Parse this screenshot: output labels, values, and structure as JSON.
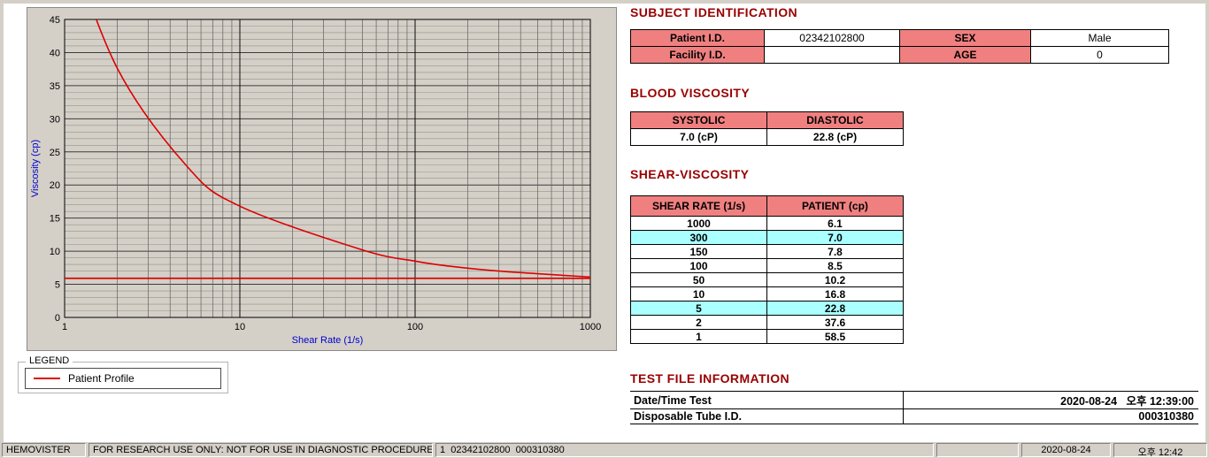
{
  "colors": {
    "header_pink": "#f08080",
    "highlight_cyan": "#aaffff",
    "title_maroon": "#990000",
    "series_red": "#dd0000",
    "axis_label_blue": "#0000cc",
    "panel_gray": "#d4d0c8"
  },
  "chart_data": {
    "type": "line",
    "x_scale": "log",
    "xlim": [
      1,
      1000
    ],
    "ylim": [
      0,
      45
    ],
    "x_ticks": [
      1,
      10,
      100,
      1000
    ],
    "y_tick_step": 5,
    "grid": true,
    "xlabel": "Shear Rate (1/s)",
    "ylabel": "Viscosity (cp)",
    "series": [
      {
        "name": "Patient Profile",
        "color": "#dd0000",
        "x": [
          1,
          2,
          5,
          10,
          50,
          100,
          150,
          300,
          1000
        ],
        "y": [
          58.5,
          37.6,
          22.8,
          16.8,
          10.2,
          8.5,
          7.8,
          7.0,
          6.1
        ]
      },
      {
        "name": "Baseline",
        "color": "#dd0000",
        "x": [
          1,
          1000
        ],
        "y": [
          5.9,
          5.9
        ]
      }
    ]
  },
  "legend": {
    "box_label": "LEGEND",
    "entries": [
      {
        "label": "Patient Profile",
        "color": "#dd0000"
      }
    ]
  },
  "subject_identification": {
    "title": "SUBJECT IDENTIFICATION",
    "rows": [
      {
        "label1": "Patient I.D.",
        "value1": "02342102800",
        "label2": "SEX",
        "value2": "Male"
      },
      {
        "label1": "Facility I.D.",
        "value1": "",
        "label2": "AGE",
        "value2": "0"
      }
    ]
  },
  "blood_viscosity": {
    "title": "BLOOD VISCOSITY",
    "headers": [
      "SYSTOLIC",
      "DIASTOLIC"
    ],
    "values": [
      "7.0 (cP)",
      "22.8 (cP)"
    ]
  },
  "shear_viscosity": {
    "title": "SHEAR-VISCOSITY",
    "headers": [
      "SHEAR RATE (1/s)",
      "PATIENT (cp)"
    ],
    "rows": [
      {
        "rate": "1000",
        "value": "6.1",
        "highlight": false
      },
      {
        "rate": "300",
        "value": "7.0",
        "highlight": true
      },
      {
        "rate": "150",
        "value": "7.8",
        "highlight": false
      },
      {
        "rate": "100",
        "value": "8.5",
        "highlight": false
      },
      {
        "rate": "50",
        "value": "10.2",
        "highlight": false
      },
      {
        "rate": "10",
        "value": "16.8",
        "highlight": false
      },
      {
        "rate": "5",
        "value": "22.8",
        "highlight": true
      },
      {
        "rate": "2",
        "value": "37.6",
        "highlight": false
      },
      {
        "rate": "1",
        "value": "58.5",
        "highlight": false
      }
    ]
  },
  "test_file_information": {
    "title": "TEST FILE INFORMATION",
    "rows": [
      {
        "label": "Date/Time Test",
        "value": "2020-08-24   오후 12:39:00"
      },
      {
        "label": "Disposable Tube I.D.",
        "value": "000310380"
      }
    ]
  },
  "status_bar": {
    "panels": [
      "HEMOVISTER",
      "FOR RESEARCH USE ONLY: NOT FOR USE IN DIAGNOSTIC PROCEDURES",
      "1  02342102800  000310380",
      "",
      "2020-08-24",
      "오후 12:42"
    ]
  }
}
